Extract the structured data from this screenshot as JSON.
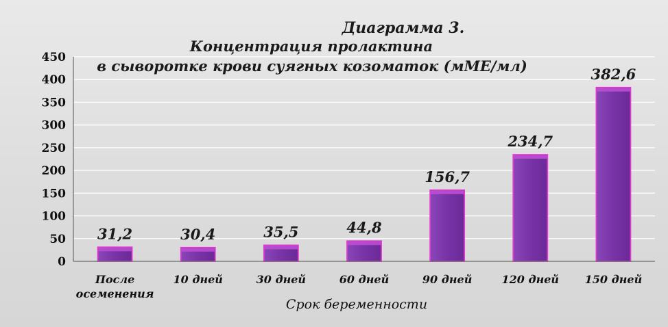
{
  "chart_data": {
    "type": "bar",
    "title_line1": "Диаграмма 3.",
    "title_line2": "Концентрация пролактина",
    "title_line3": "в сыворотке крови суягных козоматок (мМЕ/мл)",
    "xlabel": "Срок беременности",
    "ylabel": "",
    "ylim": [
      0,
      450
    ],
    "yticks": [
      0,
      50,
      100,
      150,
      200,
      250,
      300,
      350,
      400,
      450
    ],
    "grid": true,
    "categories": [
      [
        "После",
        "осеменения"
      ],
      [
        "10 дней"
      ],
      [
        "30 дней"
      ],
      [
        "60 дней"
      ],
      [
        "90 дней"
      ],
      [
        "120 дней"
      ],
      [
        "150 дней"
      ]
    ],
    "values": [
      31.2,
      30.4,
      35.5,
      44.8,
      156.7,
      234.7,
      382.6
    ],
    "value_labels": [
      "31,2",
      "30,4",
      "35,5",
      "44,8",
      "156,7",
      "234,7",
      "382,6"
    ],
    "colors": {
      "bar": "#7a36a8",
      "bar_edge": "#e03ad0",
      "bar_top": "#c04fd6"
    }
  }
}
